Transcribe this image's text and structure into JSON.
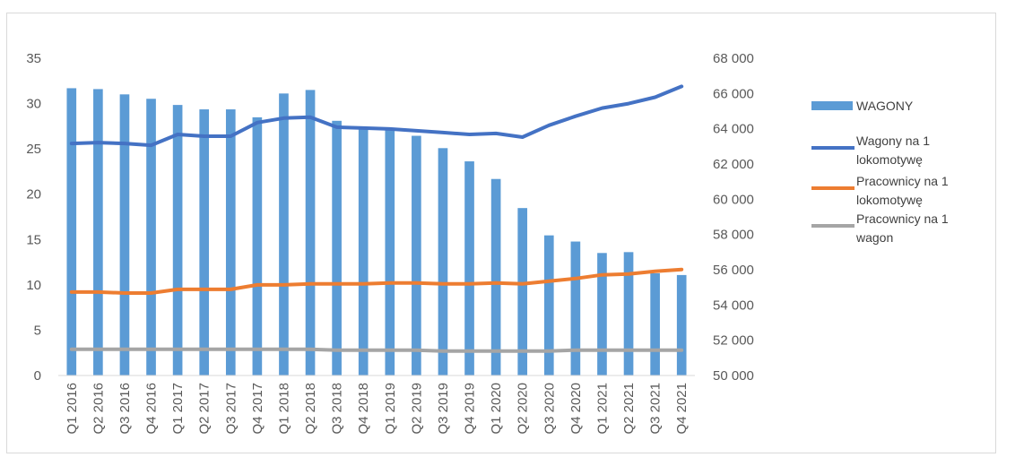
{
  "chart_data": {
    "type": "bar",
    "categories": [
      "Q1 2016",
      "Q2 2016",
      "Q3 2016",
      "Q4 2016",
      "Q1 2017",
      "Q2 2017",
      "Q3 2017",
      "Q4 2017",
      "Q1 2018",
      "Q2 2018",
      "Q3 2018",
      "Q4 2018",
      "Q1 2019",
      "Q2 2019",
      "Q3 2019",
      "Q4 2019",
      "Q1 2020",
      "Q2 2020",
      "Q3 2020",
      "Q4 2020",
      "Q1 2021",
      "Q2 2021",
      "Q3 2021",
      "Q4 2021"
    ],
    "left_axis": {
      "ticks": [
        "0",
        "5",
        "10",
        "15",
        "20",
        "25",
        "30",
        "35"
      ],
      "ylim": [
        0,
        35
      ]
    },
    "right_axis": {
      "ticks": [
        "50 000",
        "52 000",
        "54 000",
        "56 000",
        "58 000",
        "60 000",
        "62 000",
        "64 000",
        "66 000",
        "68 000"
      ],
      "ylim": [
        50000,
        68000
      ]
    },
    "series": [
      {
        "name": "WAGONY",
        "type": "bar",
        "axis": "right",
        "color": "#5b9bd5",
        "values": [
          66300,
          66250,
          65950,
          65700,
          65350,
          65100,
          65100,
          64650,
          66000,
          66200,
          64450,
          64100,
          64000,
          63600,
          62900,
          62150,
          61150,
          59500,
          57950,
          57600,
          56950,
          57000,
          55800,
          55700
        ]
      },
      {
        "name": "Wagony na 1 lokomotywę",
        "type": "line",
        "axis": "left",
        "color": "#4472c4",
        "values": [
          25.6,
          25.7,
          25.6,
          25.4,
          26.6,
          26.4,
          26.4,
          27.9,
          28.4,
          28.5,
          27.4,
          27.3,
          27.2,
          27.0,
          26.8,
          26.6,
          26.7,
          26.3,
          27.6,
          28.6,
          29.5,
          30.0,
          30.7,
          31.9
        ]
      },
      {
        "name": "Pracownicy na 1 lokomotywę",
        "type": "line",
        "axis": "left",
        "color": "#ed7d31",
        "values": [
          9.2,
          9.2,
          9.1,
          9.1,
          9.5,
          9.5,
          9.5,
          10.0,
          10.0,
          10.1,
          10.1,
          10.1,
          10.2,
          10.2,
          10.1,
          10.1,
          10.2,
          10.1,
          10.4,
          10.7,
          11.1,
          11.2,
          11.5,
          11.7
        ]
      },
      {
        "name": "Pracownicy na 1 wagon",
        "type": "line",
        "axis": "left",
        "color": "#a5a5a5",
        "values": [
          2.9,
          2.9,
          2.9,
          2.9,
          2.9,
          2.9,
          2.9,
          2.9,
          2.9,
          2.9,
          2.8,
          2.8,
          2.8,
          2.8,
          2.7,
          2.7,
          2.7,
          2.7,
          2.7,
          2.8,
          2.8,
          2.8,
          2.8,
          2.8
        ]
      }
    ],
    "legend": {
      "position": "right",
      "items": [
        {
          "lines": [
            "WAGONY"
          ],
          "color": "#5b9bd5",
          "kind": "bar"
        },
        {
          "lines": [
            "Wagony na 1",
            "lokomotywę"
          ],
          "color": "#4472c4",
          "kind": "line"
        },
        {
          "lines": [
            "Pracownicy na 1",
            "lokomotywę"
          ],
          "color": "#ed7d31",
          "kind": "line"
        },
        {
          "lines": [
            "Pracownicy na 1",
            "wagon"
          ],
          "color": "#a5a5a5",
          "kind": "line"
        }
      ]
    },
    "grid": false
  }
}
